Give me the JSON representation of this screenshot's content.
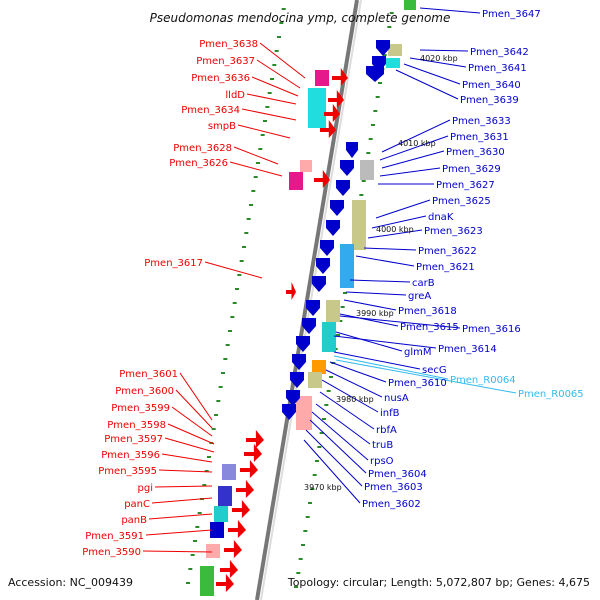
{
  "title": "Pseudomonas mendocina ymp, complete genome",
  "accession": "Accession: NC_009439",
  "topology": "Topology: circular; Length: 5,072,807 bp; Genes: 4,675",
  "scale_labels": [
    "4020 kbp",
    "4010 kbp",
    "4000 kbp",
    "3990 kbp",
    "3980 kbp",
    "3970 kbp"
  ],
  "colors": {
    "reverse": "#ee0000",
    "forward": "#0000cc",
    "rna": "#33bbee",
    "backbone": "#999999"
  },
  "left_labels": [
    "Pmen_3638",
    "Pmen_3637",
    "Pmen_3636",
    "lldD",
    "Pmen_3634",
    "smpB",
    "Pmen_3628",
    "Pmen_3626",
    "Pmen_3617",
    "Pmen_3601",
    "Pmen_3600",
    "Pmen_3599",
    "Pmen_3598",
    "Pmen_3597",
    "Pmen_3596",
    "Pmen_3595",
    "pgi",
    "panC",
    "panB",
    "Pmen_3591",
    "Pmen_3590"
  ],
  "right_labels": [
    "Pmen_3647",
    "Pmen_3642",
    "Pmen_3641",
    "Pmen_3640",
    "Pmen_3639",
    "Pmen_3633",
    "Pmen_3631",
    "Pmen_3630",
    "Pmen_3629",
    "Pmen_3627",
    "Pmen_3625",
    "dnaK",
    "Pmen_3623",
    "Pmen_3622",
    "Pmen_3621",
    "carB",
    "greA",
    "Pmen_3618",
    "Pmen_3615",
    "Pmen_3616",
    "glmM",
    "Pmen_3614",
    "secG",
    "Pmen_3610",
    "Pmen_R0064",
    "nusA",
    "Pmen_R0065",
    "infB",
    "rbfA",
    "truB",
    "rpsO",
    "Pmen_3604",
    "Pmen_3603",
    "Pmen_3602"
  ]
}
